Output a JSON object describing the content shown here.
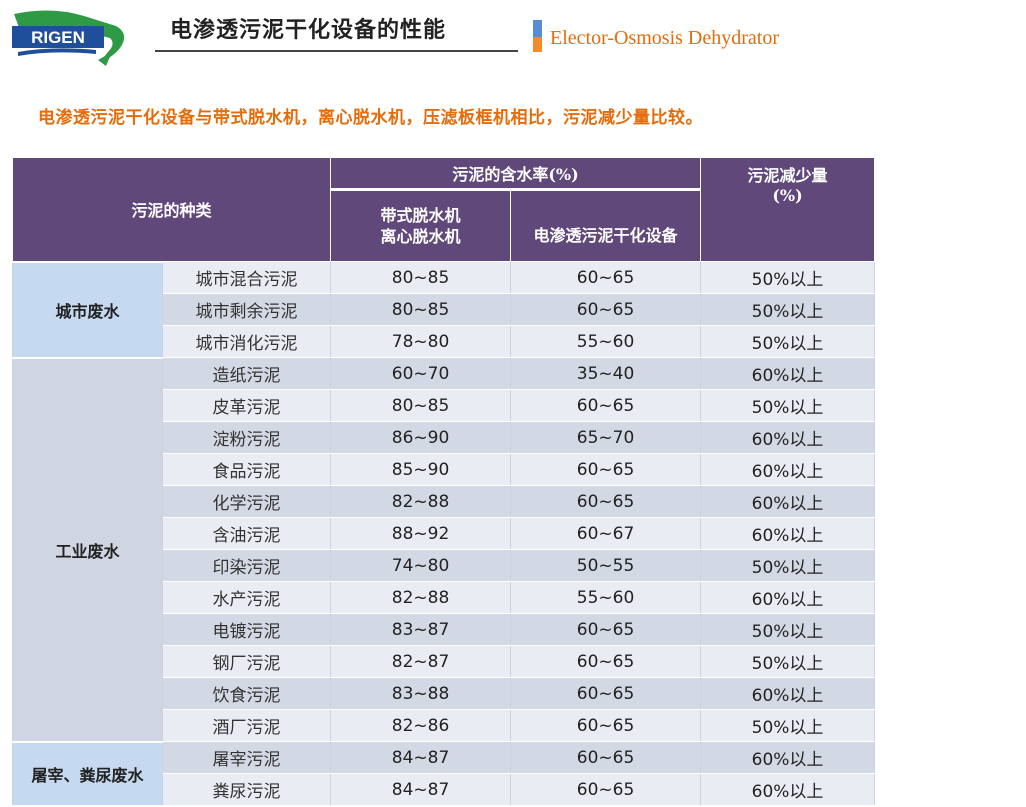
{
  "header": {
    "logo_text": "RIGEN",
    "title": "电渗透污泥干化设备的性能",
    "subtitle": "Elector-Osmosis Dehydrator",
    "colors": {
      "title_text": "#222222",
      "subtitle_text": "#e46c0a",
      "marker_top": "#5b8bd1",
      "marker_bottom": "#f28c28",
      "logo_blue": "#1f4e9a",
      "logo_green": "#2e9a45"
    }
  },
  "intro": "电渗透污泥干化设备与带式脱水机，离心脱水机，压滤板框机相比，污泥减少量比较。",
  "table": {
    "colors": {
      "header_bg": "#60497a",
      "row_light": "#e9edf3",
      "row_dark": "#d3d9e4",
      "category_blue": "#c5d9f1",
      "category_gray": "#cfd5e2"
    },
    "headers": {
      "sludge_type": "污泥的种类",
      "water_content": "污泥的含水率(%)",
      "reduction": "污泥减少量",
      "reduction_unit": "(%)",
      "col_a_line1": "带式脱水机",
      "col_a_line2": "离心脱水机",
      "col_b": "电渗透污泥干化设备"
    },
    "groups": [
      {
        "category": "城市废水",
        "rows": [
          {
            "name": "城市混合污泥",
            "a": "80~85",
            "b": "60~65",
            "r": "50%以上"
          },
          {
            "name": "城市剩余污泥",
            "a": "80~85",
            "b": "60~65",
            "r": "50%以上"
          },
          {
            "name": "城市消化污泥",
            "a": "78~80",
            "b": "55~60",
            "r": "50%以上"
          }
        ]
      },
      {
        "category": "工业废水",
        "rows": [
          {
            "name": "造纸污泥",
            "a": "60~70",
            "b": "35~40",
            "r": "60%以上"
          },
          {
            "name": "皮革污泥",
            "a": "80~85",
            "b": "60~65",
            "r": "50%以上"
          },
          {
            "name": "淀粉污泥",
            "a": "86~90",
            "b": "65~70",
            "r": "60%以上"
          },
          {
            "name": "食品污泥",
            "a": "85~90",
            "b": "60~65",
            "r": "60%以上"
          },
          {
            "name": "化学污泥",
            "a": "82~88",
            "b": "60~65",
            "r": "60%以上"
          },
          {
            "name": "含油污泥",
            "a": "88~92",
            "b": "60~67",
            "r": "60%以上"
          },
          {
            "name": "印染污泥",
            "a": "74~80",
            "b": "50~55",
            "r": "50%以上"
          },
          {
            "name": "水产污泥",
            "a": "82~88",
            "b": "55~60",
            "r": "60%以上"
          },
          {
            "name": "电镀污泥",
            "a": "83~87",
            "b": "60~65",
            "r": "50%以上"
          },
          {
            "name": "钢厂污泥",
            "a": "82~87",
            "b": "60~65",
            "r": "50%以上"
          },
          {
            "name": "饮食污泥",
            "a": "83~88",
            "b": "60~65",
            "r": "60%以上"
          },
          {
            "name": "酒厂污泥",
            "a": "82~86",
            "b": "60~65",
            "r": "50%以上"
          }
        ]
      },
      {
        "category": "屠宰、粪尿废水",
        "rows": [
          {
            "name": "屠宰污泥",
            "a": "84~87",
            "b": "60~65",
            "r": "60%以上"
          },
          {
            "name": "粪尿污泥",
            "a": "84~87",
            "b": "60~65",
            "r": "60%以上"
          }
        ]
      }
    ]
  }
}
